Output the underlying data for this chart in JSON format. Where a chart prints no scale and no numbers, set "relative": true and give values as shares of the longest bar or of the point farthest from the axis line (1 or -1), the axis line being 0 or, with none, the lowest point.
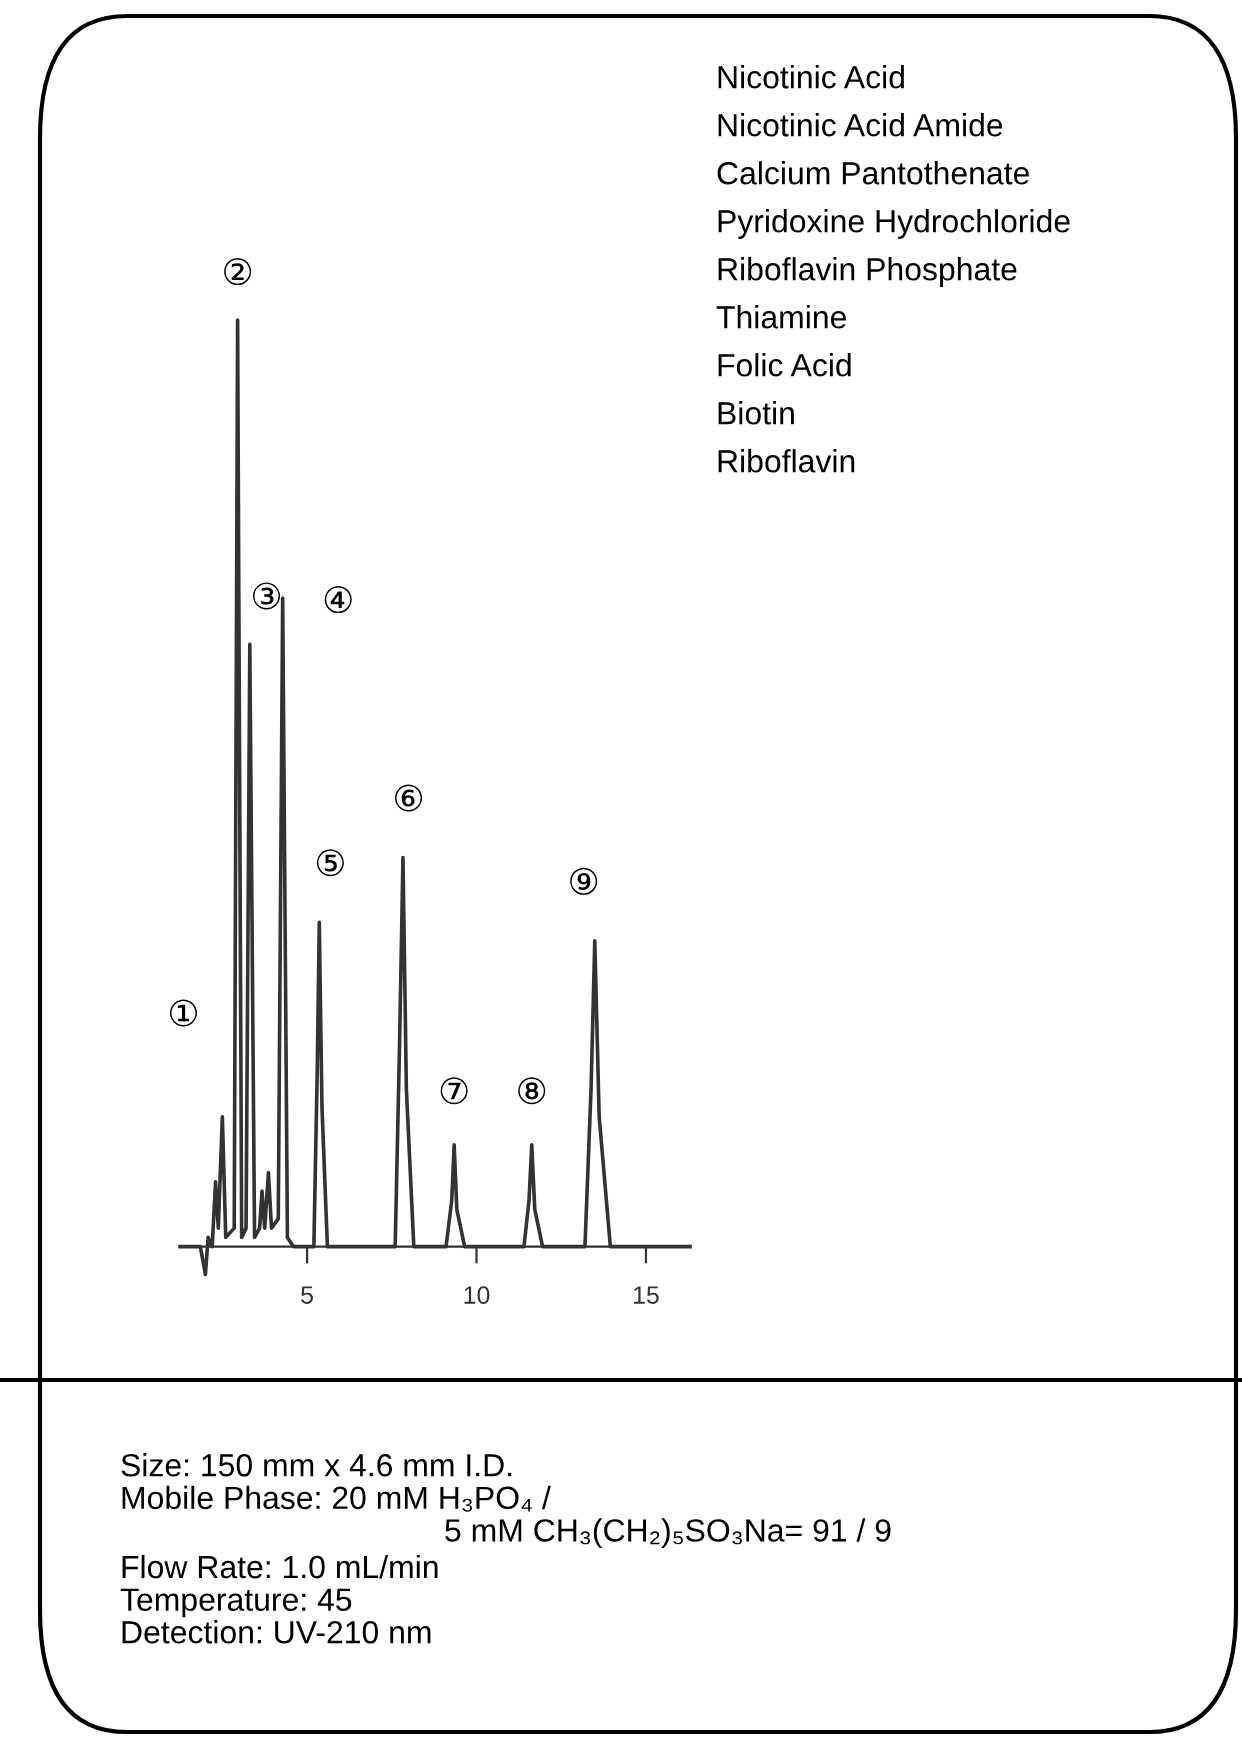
{
  "chart_data": {
    "type": "line",
    "relative": true,
    "color": "#333333",
    "x": [
      1.25,
      1.85,
      2.0,
      2.08,
      2.2,
      2.3,
      2.38,
      2.5,
      2.6,
      2.85,
      2.95,
      3.07,
      3.2,
      3.31,
      3.45,
      3.6,
      3.67,
      3.75,
      3.86,
      3.95,
      4.15,
      4.28,
      4.42,
      4.6,
      5.2,
      5.3,
      5.36,
      5.44,
      5.6,
      7.6,
      7.73,
      7.83,
      7.93,
      8.15,
      9.1,
      9.27,
      9.34,
      9.42,
      9.65,
      11.4,
      11.55,
      11.63,
      11.72,
      11.95,
      13.2,
      13.38,
      13.49,
      13.62,
      13.95,
      16.3
    ],
    "values": [
      0,
      0,
      -0.03,
      0.01,
      0,
      0.07,
      0.02,
      0.14,
      0.01,
      0.02,
      1.0,
      0.01,
      0.02,
      0.65,
      0.01,
      0.02,
      0.06,
      0.02,
      0.08,
      0.02,
      0.03,
      0.7,
      0.01,
      0,
      0,
      0.19,
      0.35,
      0.15,
      0,
      0,
      0.22,
      0.42,
      0.17,
      0,
      0,
      0.05,
      0.11,
      0.04,
      0,
      0,
      0.05,
      0.11,
      0.04,
      0,
      0,
      0.17,
      0.33,
      0.14,
      0,
      0
    ],
    "xlim": [
      1.25,
      16.3
    ],
    "xticks": [
      5,
      10,
      15
    ],
    "annotations": [
      {
        "text": "①",
        "x": 2.5,
        "y": 0.14
      },
      {
        "text": "②",
        "x": 2.95,
        "y": 1.0
      },
      {
        "text": "③",
        "x": 3.31,
        "y": 0.65
      },
      {
        "text": "④",
        "x": 4.28,
        "y": 0.7
      },
      {
        "text": "⑤",
        "x": 5.36,
        "y": 0.35
      },
      {
        "text": "⑥",
        "x": 7.83,
        "y": 0.42
      },
      {
        "text": "⑦",
        "x": 9.34,
        "y": 0.11
      },
      {
        "text": "⑧",
        "x": 11.63,
        "y": 0.11
      },
      {
        "text": "⑨",
        "x": 13.49,
        "y": 0.33
      },
      "Nicotinic Acid",
      "Nicotinic Acid Amide",
      "Calcium Pantothenate",
      "Pyridoxine Hydrochloride",
      "Riboflavin Phosphate",
      "Thiamine",
      "Folic Acid",
      "Biotin",
      "Riboflavin",
      "Size: 150 mm x 4.6 mm I.D.",
      "Mobile Phase: 20 mM H₃PO₄ /",
      "5 mM CH₃(CH₂)₅SO₃Na= 91 / 9",
      "Flow Rate: 1.0 mL/min",
      "Temperature: 45",
      "Detection: UV-210 nm"
    ]
  }
}
